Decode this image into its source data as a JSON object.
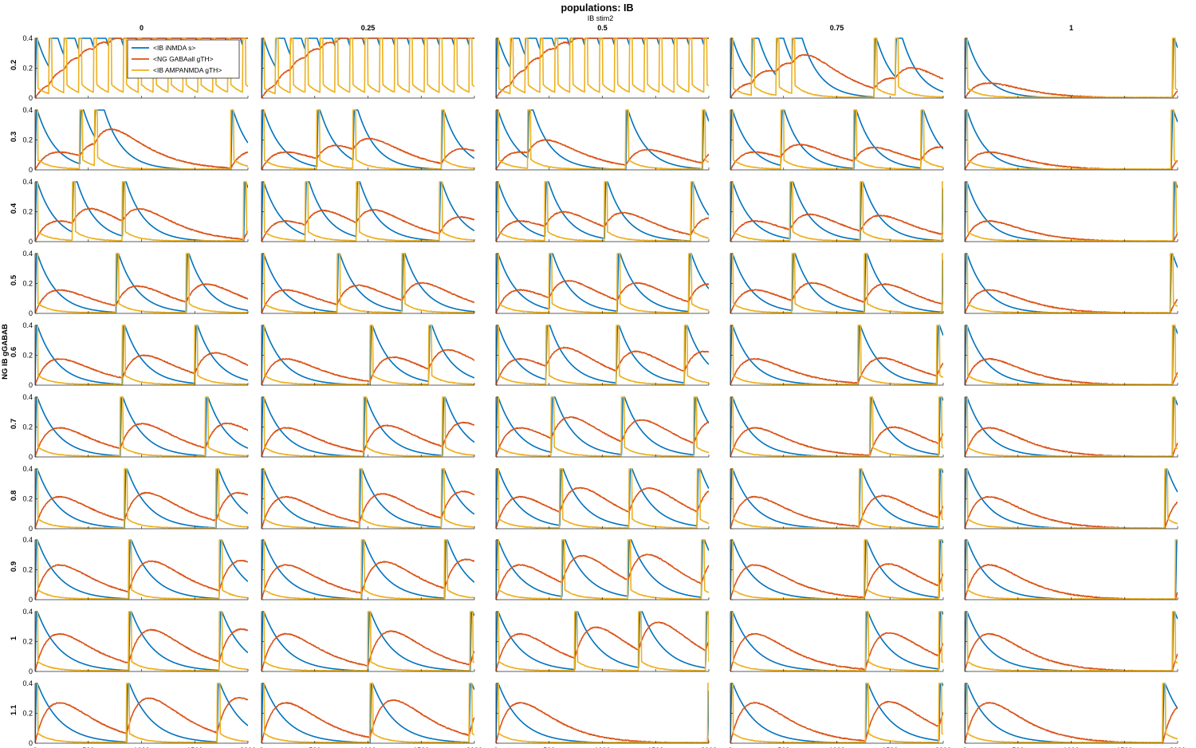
{
  "chart_data": {
    "type": "line",
    "title": "populations: IB",
    "subtitle": "IB stim2",
    "ylabel": "NG IB gGABAB",
    "columns": [
      "0",
      "0.25",
      "0.5",
      "0.75",
      "1"
    ],
    "rows": [
      "0.2",
      "0.3",
      "0.4",
      "0.5",
      "0.6",
      "0.7",
      "0.8",
      "0.9",
      "1",
      "1.1"
    ],
    "xlim": [
      0,
      2000
    ],
    "ylim": [
      0,
      0.4
    ],
    "x_ticks": [
      0,
      500,
      1000,
      1500,
      2000
    ],
    "x_tick_labels": [
      "0",
      "500",
      "1000",
      "1500",
      "2000"
    ],
    "y_ticks": [
      0,
      0.2,
      0.4
    ],
    "y_tick_labels": [
      "0",
      "0.2",
      "0.4"
    ],
    "series": [
      {
        "name": "<IB iNMDA s>",
        "color": "#0072BD"
      },
      {
        "name": "<NG GABAall gTH>",
        "color": "#D95319"
      },
      {
        "name": "<IB AMPANMDA gTH>",
        "color": "#EDB120"
      }
    ],
    "burst_times": [
      [
        [
          0,
          130,
          270,
          410,
          550,
          690,
          830,
          970,
          1110,
          1250,
          1390,
          1530,
          1670,
          1810,
          1950
        ],
        [
          0,
          130,
          270,
          410,
          550,
          690,
          830,
          970,
          1110,
          1250,
          1390,
          1530,
          1670,
          1810,
          1950
        ],
        [
          0,
          135,
          275,
          415,
          555,
          695,
          835,
          975,
          1115,
          1255,
          1395,
          1535,
          1675,
          1815,
          1955
        ],
        [
          0,
          200,
          430,
          580,
          1350,
          1550
        ],
        [
          0,
          1950
        ]
      ],
      [
        [
          0,
          420,
          560,
          1840
        ],
        [
          0,
          520,
          860,
          1690
        ],
        [
          0,
          300,
          1220,
          1940
        ],
        [
          0,
          475,
          1160,
          1790
        ],
        [
          0,
          1940
        ]
      ],
      [
        [
          0,
          350,
          820,
          1960
        ],
        [
          0,
          410,
          890,
          1670
        ],
        [
          0,
          460,
          1020,
          1830
        ],
        [
          0,
          560,
          1220,
          1990
        ],
        [
          0,
          1960
        ]
      ],
      [
        [
          0,
          760,
          1420
        ],
        [
          0,
          710,
          1320
        ],
        [
          0,
          500,
          1140,
          1810
        ],
        [
          0,
          580,
          1260,
          1990
        ],
        [
          0,
          1930
        ]
      ],
      [
        [
          0,
          820,
          1500
        ],
        [
          0,
          1020,
          1570
        ],
        [
          0,
          470,
          1130,
          1770
        ],
        [
          0,
          1200,
          1940
        ],
        [
          0,
          1950
        ]
      ],
      [
        [
          0,
          800,
          1600
        ],
        [
          0,
          960,
          1700
        ],
        [
          0,
          520,
          1180,
          1860
        ],
        [
          0,
          1310,
          1960
        ],
        [
          0,
          1950
        ]
      ],
      [
        [
          0,
          840,
          1700
        ],
        [
          0,
          920,
          1690
        ],
        [
          0,
          600,
          1250,
          1890
        ],
        [
          0,
          1210,
          1960
        ],
        [
          0,
          1880
        ]
      ],
      [
        [
          0,
          880,
          1730
        ],
        [
          0,
          940,
          1720
        ],
        [
          0,
          620,
          1240,
          1930
        ],
        [
          0,
          1260,
          1960
        ],
        [
          0,
          1980
        ]
      ],
      [
        [
          0,
          880,
          1730
        ],
        [
          0,
          1000,
          1960
        ],
        [
          0,
          740,
          1340,
          1970
        ],
        [
          0,
          1270,
          1960
        ],
        [
          0,
          1950
        ]
      ],
      [
        [
          0,
          860,
          1710
        ],
        [
          0,
          1020,
          1950
        ],
        [
          0,
          1990
        ],
        [
          0,
          1270,
          1960
        ],
        [
          0,
          1860
        ]
      ]
    ],
    "legend_location": "top-left of first panel"
  }
}
